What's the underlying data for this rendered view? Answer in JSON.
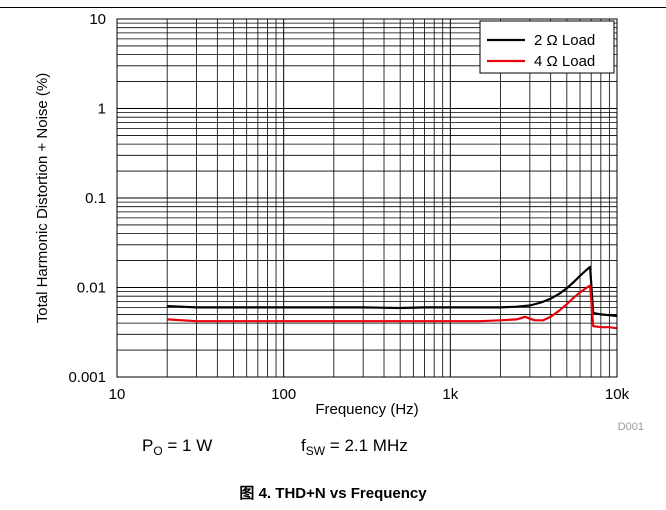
{
  "chart_data": {
    "type": "line",
    "xlabel": "Frequency (Hz)",
    "ylabel": "Total Harmonic Distortion + Noise (%)",
    "x_scale": "log",
    "y_scale": "log",
    "xlim": [
      10,
      10000
    ],
    "ylim": [
      0.001,
      10
    ],
    "x_ticks": [
      "10",
      "100",
      "1k",
      "10k"
    ],
    "y_ticks": [
      "0.001",
      "0.01",
      "0.1",
      "1",
      "10"
    ],
    "grid": true,
    "legend_position": "top-right",
    "image_id": "D001",
    "series": [
      {
        "name": "2 Ω Load",
        "color": "#000000",
        "points": [
          [
            20,
            0.0062
          ],
          [
            30,
            0.006
          ],
          [
            50,
            0.006
          ],
          [
            100,
            0.006
          ],
          [
            200,
            0.006
          ],
          [
            300,
            0.006
          ],
          [
            500,
            0.0059
          ],
          [
            700,
            0.006
          ],
          [
            1000,
            0.006
          ],
          [
            1500,
            0.006
          ],
          [
            2000,
            0.006
          ],
          [
            2500,
            0.0061
          ],
          [
            3000,
            0.0063
          ],
          [
            3500,
            0.0068
          ],
          [
            4000,
            0.0075
          ],
          [
            4500,
            0.0085
          ],
          [
            5000,
            0.0098
          ],
          [
            5500,
            0.0115
          ],
          [
            6000,
            0.0135
          ],
          [
            6500,
            0.0155
          ],
          [
            6900,
            0.017
          ],
          [
            7200,
            0.0052
          ],
          [
            8000,
            0.005
          ],
          [
            9000,
            0.0049
          ],
          [
            10000,
            0.0048
          ]
        ]
      },
      {
        "name": "4 Ω Load",
        "color": "#e8000b",
        "points": [
          [
            20,
            0.0044
          ],
          [
            30,
            0.0042
          ],
          [
            50,
            0.0042
          ],
          [
            100,
            0.0042
          ],
          [
            200,
            0.0042
          ],
          [
            300,
            0.0042
          ],
          [
            500,
            0.0042
          ],
          [
            700,
            0.0042
          ],
          [
            1000,
            0.0042
          ],
          [
            1500,
            0.0042
          ],
          [
            2000,
            0.0043
          ],
          [
            2500,
            0.0044
          ],
          [
            2800,
            0.0047
          ],
          [
            3200,
            0.0043
          ],
          [
            3600,
            0.0043
          ],
          [
            4000,
            0.0047
          ],
          [
            4500,
            0.0055
          ],
          [
            5000,
            0.0065
          ],
          [
            5500,
            0.0077
          ],
          [
            6000,
            0.0088
          ],
          [
            6500,
            0.0098
          ],
          [
            6900,
            0.0105
          ],
          [
            7200,
            0.0037
          ],
          [
            8000,
            0.0036
          ],
          [
            9000,
            0.0036
          ],
          [
            10000,
            0.0035
          ]
        ]
      }
    ]
  },
  "conditions": {
    "po_main": "P",
    "po_sub": "O",
    "po_value": " = 1 W",
    "fsw_main": "f",
    "fsw_sub": "SW",
    "fsw_value": " = 2.1 MHz"
  },
  "caption": {
    "prefix": "图 4.",
    "title": "THD+N vs Frequency"
  }
}
